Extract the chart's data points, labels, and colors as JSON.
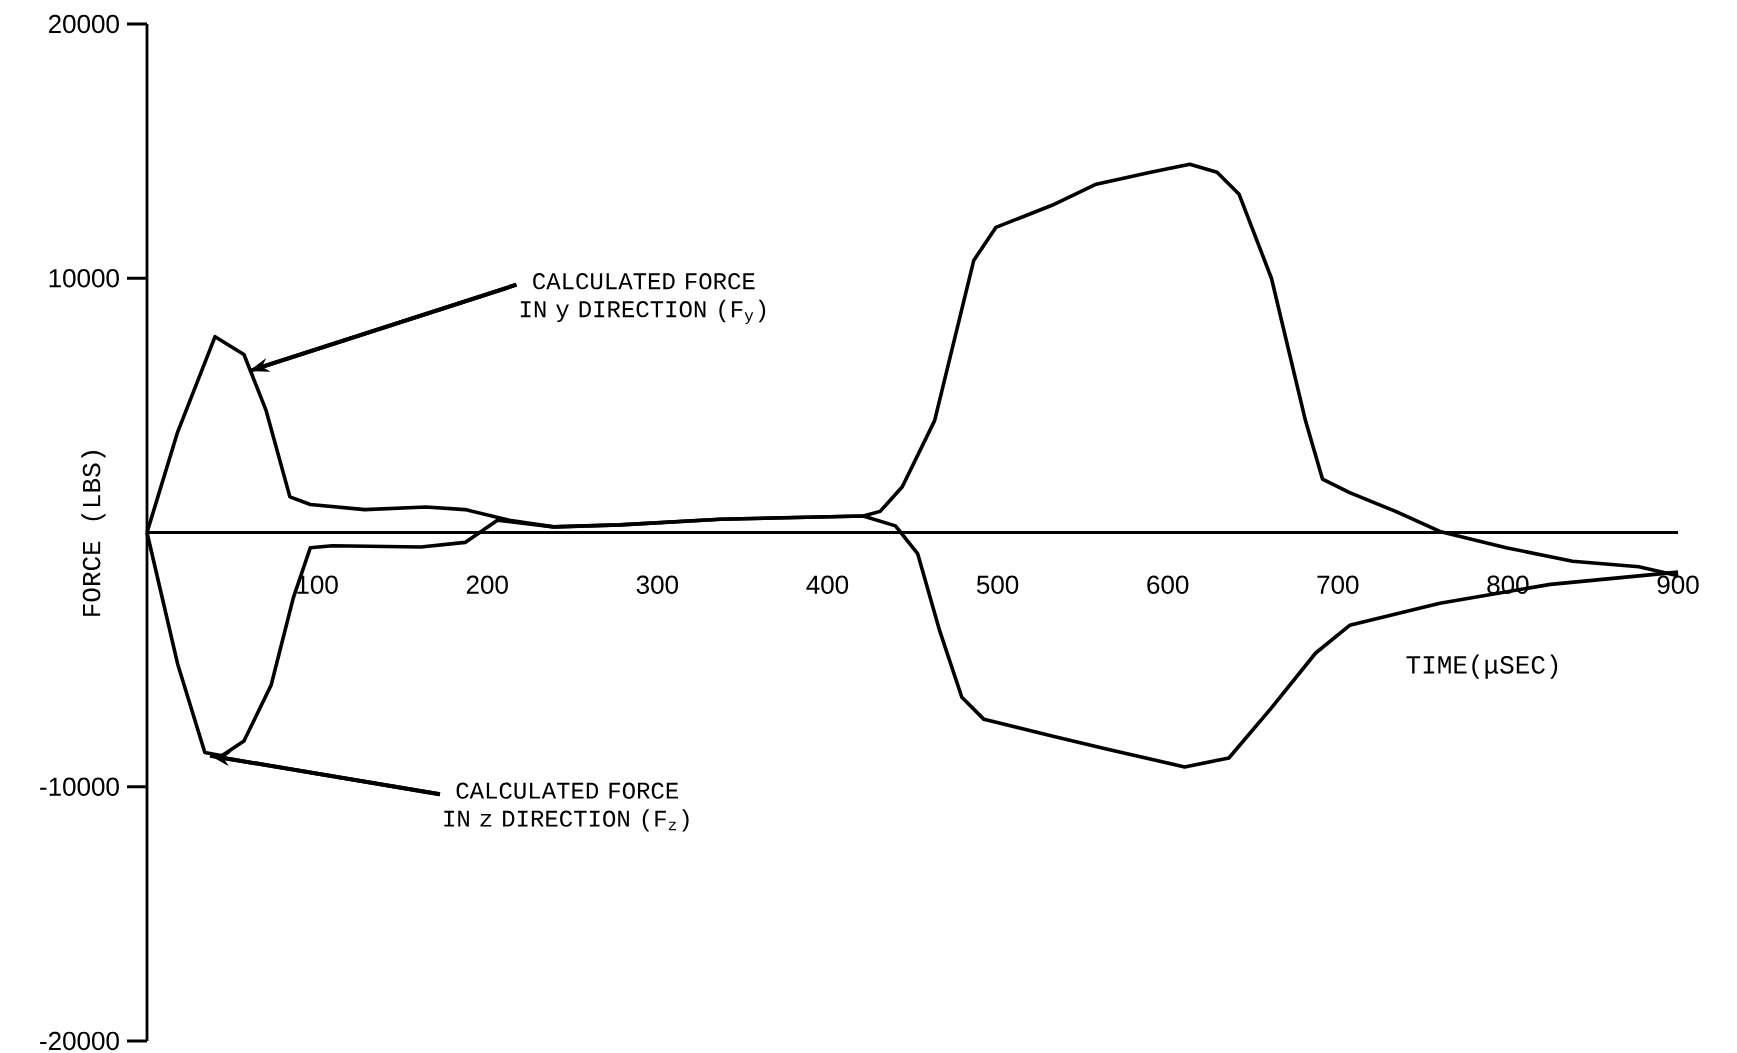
{
  "chart_data": {
    "type": "line",
    "xlabel": "TIME(μSEC)",
    "ylabel": "FORCE (LBS)",
    "xlim": [
      0,
      900
    ],
    "ylim": [
      -20000,
      20000
    ],
    "xticks": [
      100,
      200,
      300,
      400,
      500,
      600,
      700,
      800,
      900
    ],
    "yticks": [
      -20000,
      -10000,
      10000,
      20000
    ],
    "series": [
      {
        "color": "#000000",
        "x": [
          0,
          18,
          40,
          57,
          70,
          84,
          96,
          128,
          164,
          187,
          213,
          239,
          278,
          337,
          421,
          431,
          444,
          463,
          486,
          499,
          532,
          558,
          590,
          613,
          629,
          642,
          661,
          681,
          691,
          707,
          734,
          760,
          799,
          838,
          877,
          900
        ],
        "values": [
          0,
          3950,
          7700,
          7000,
          4800,
          1400,
          1100,
          900,
          1000,
          900,
          480,
          220,
          300,
          520,
          650,
          830,
          1800,
          4400,
          10700,
          12000,
          12870,
          13700,
          14170,
          14480,
          14170,
          13300,
          10000,
          4400,
          2100,
          1570,
          830,
          40,
          -600,
          -1130,
          -1350,
          -1700
        ]
      },
      {
        "color": "#000000",
        "x": [
          0,
          18,
          34,
          44,
          57,
          73,
          86,
          96,
          109,
          161,
          187,
          206,
          239,
          278,
          337,
          421,
          440,
          453,
          466,
          479,
          492,
          532,
          564,
          610,
          636,
          661,
          687,
          707,
          760,
          825,
          900
        ],
        "values": [
          0,
          -5170,
          -8650,
          -8780,
          -8200,
          -6000,
          -2570,
          -600,
          -520,
          -570,
          -390,
          480,
          220,
          300,
          520,
          650,
          260,
          -830,
          -3870,
          -6480,
          -7350,
          -8000,
          -8520,
          -9220,
          -8870,
          -6900,
          -4740,
          -3650,
          -2780,
          -2040,
          -1560
        ]
      }
    ],
    "annotations": [
      {
        "text": "CALCULATED FORCE IN y DIRECTION (F$_{y}$)",
        "x": 60,
        "y": 6350
      },
      {
        "text": "CALCULATED FORCE IN z DIRECTION (F$_{z}$)",
        "x": 37,
        "y": -8780
      }
    ]
  }
}
